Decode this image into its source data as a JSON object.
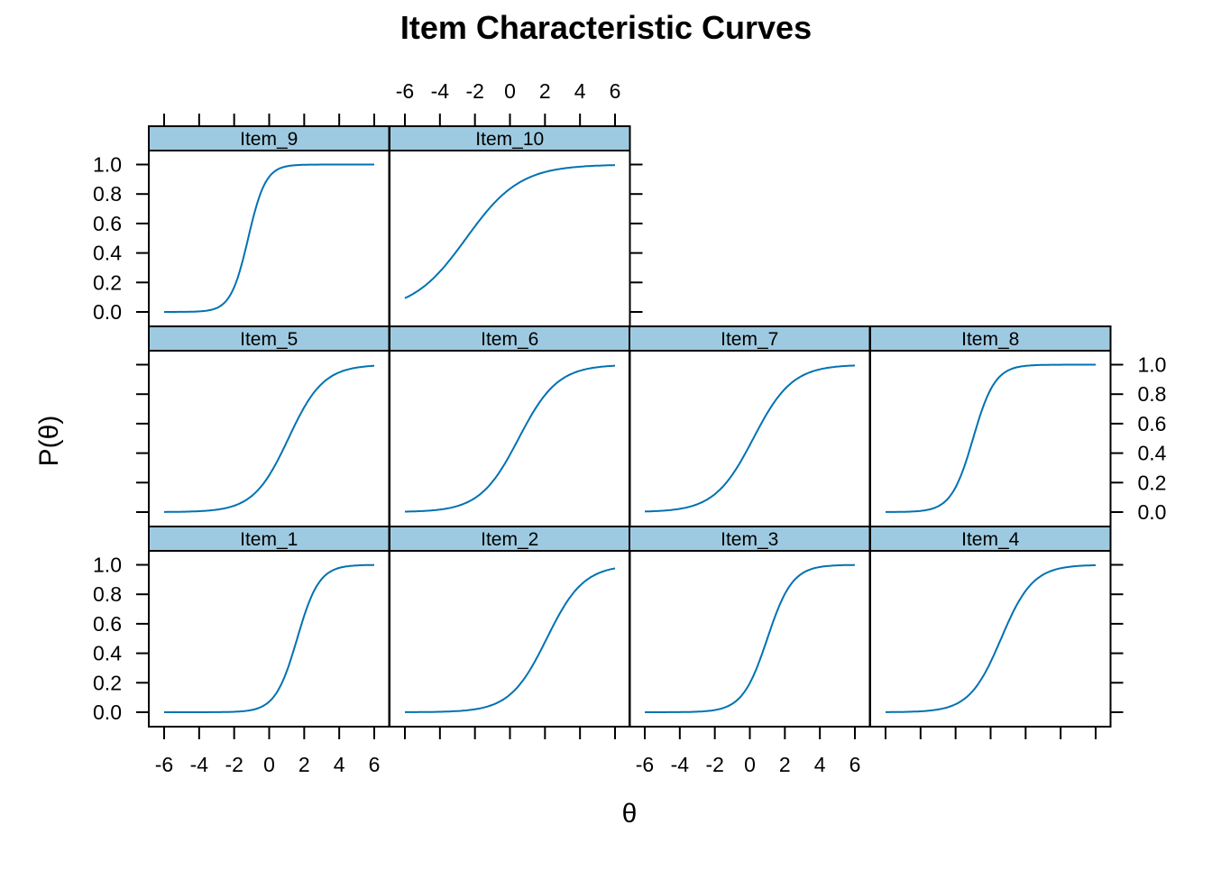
{
  "chart_data": {
    "type": "line",
    "title": "Item Characteristic Curves",
    "xlabel": "θ",
    "ylabel": "P(θ)",
    "xlim": [
      -6,
      6
    ],
    "ylim": [
      0,
      1
    ],
    "x_ticks": [
      "-6",
      "-4",
      "-2",
      "0",
      "2",
      "4",
      "6"
    ],
    "y_ticks": [
      "0.0",
      "0.2",
      "0.4",
      "0.6",
      "0.8",
      "1.0"
    ],
    "strip_color": "#9ECAE1",
    "line_color": "#0072B2",
    "panels": [
      {
        "name": "Item_1",
        "a": 1.6,
        "b": 1.6
      },
      {
        "name": "Item_2",
        "a": 0.95,
        "b": 2.1
      },
      {
        "name": "Item_3",
        "a": 1.4,
        "b": 1.0
      },
      {
        "name": "Item_4",
        "a": 1.1,
        "b": 0.6
      },
      {
        "name": "Item_5",
        "a": 1.0,
        "b": 1.1
      },
      {
        "name": "Item_6",
        "a": 0.9,
        "b": 0.5
      },
      {
        "name": "Item_7",
        "a": 0.9,
        "b": 0.2
      },
      {
        "name": "Item_8",
        "a": 1.6,
        "b": -1.0
      },
      {
        "name": "Item_9",
        "a": 2.0,
        "b": -1.2
      },
      {
        "name": "Item_10",
        "a": 0.65,
        "b": -2.5
      }
    ]
  }
}
